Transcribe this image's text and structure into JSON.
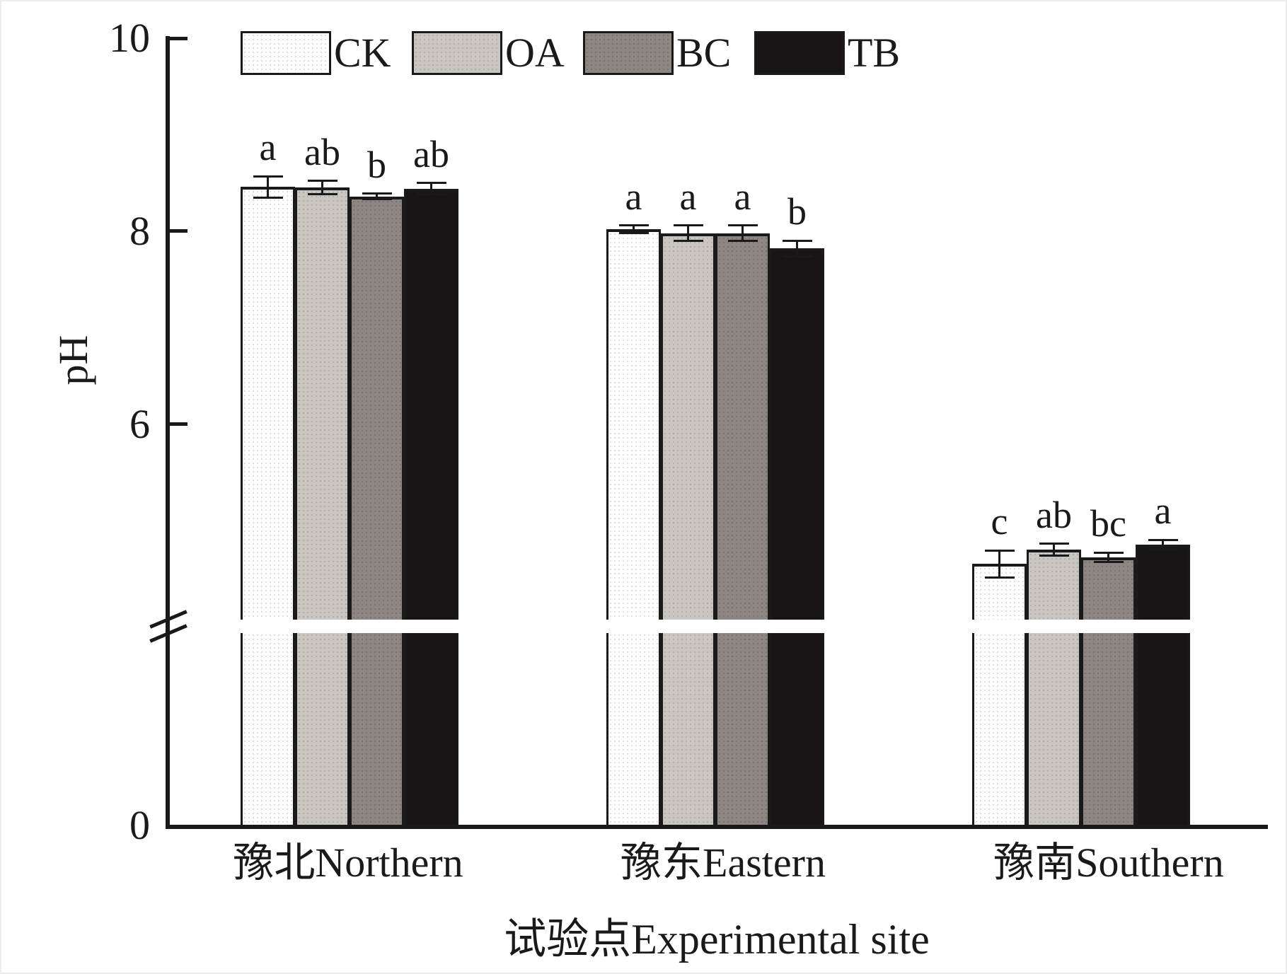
{
  "chart_data": {
    "type": "bar",
    "title": "",
    "xlabel": "试验点Experimental site",
    "ylabel": "pH",
    "categories": [
      "豫北Northern",
      "豫东Eastern",
      "豫南Southern"
    ],
    "series": [
      {
        "name": "CK",
        "values": [
          8.46,
          8.02,
          4.55
        ],
        "errors": [
          0.11,
          0.04,
          0.14
        ],
        "sig_letters": [
          "a",
          "a",
          "c"
        ]
      },
      {
        "name": "OA",
        "values": [
          8.45,
          7.98,
          4.7
        ],
        "errors": [
          0.07,
          0.08,
          0.06
        ],
        "sig_letters": [
          "ab",
          "a",
          "ab"
        ]
      },
      {
        "name": "BC",
        "values": [
          8.36,
          7.98,
          4.62
        ],
        "errors": [
          0.03,
          0.08,
          0.05
        ],
        "sig_letters": [
          "b",
          "a",
          "bc"
        ]
      },
      {
        "name": "TB",
        "values": [
          8.44,
          7.82,
          4.75
        ],
        "errors": [
          0.06,
          0.08,
          0.05
        ],
        "sig_letters": [
          "ab",
          "b",
          "a"
        ]
      }
    ],
    "legend": [
      "CK",
      "OA",
      "BC",
      "TB"
    ],
    "legend_position": "top",
    "y_axis": {
      "ticks": [
        {
          "label": "10",
          "value": 10
        },
        {
          "label": "8",
          "value": 8
        },
        {
          "label": "6",
          "value": 6
        },
        {
          "label": "0",
          "value": 0
        }
      ],
      "ylim": [
        0,
        10
      ],
      "axis_break": true
    },
    "grid": false,
    "colors": {
      "CK": "#ffffff",
      "OA": "#c9c5c1",
      "BC": "#8e8683",
      "TB": "#191516",
      "ink": "#1a1a1a"
    }
  }
}
